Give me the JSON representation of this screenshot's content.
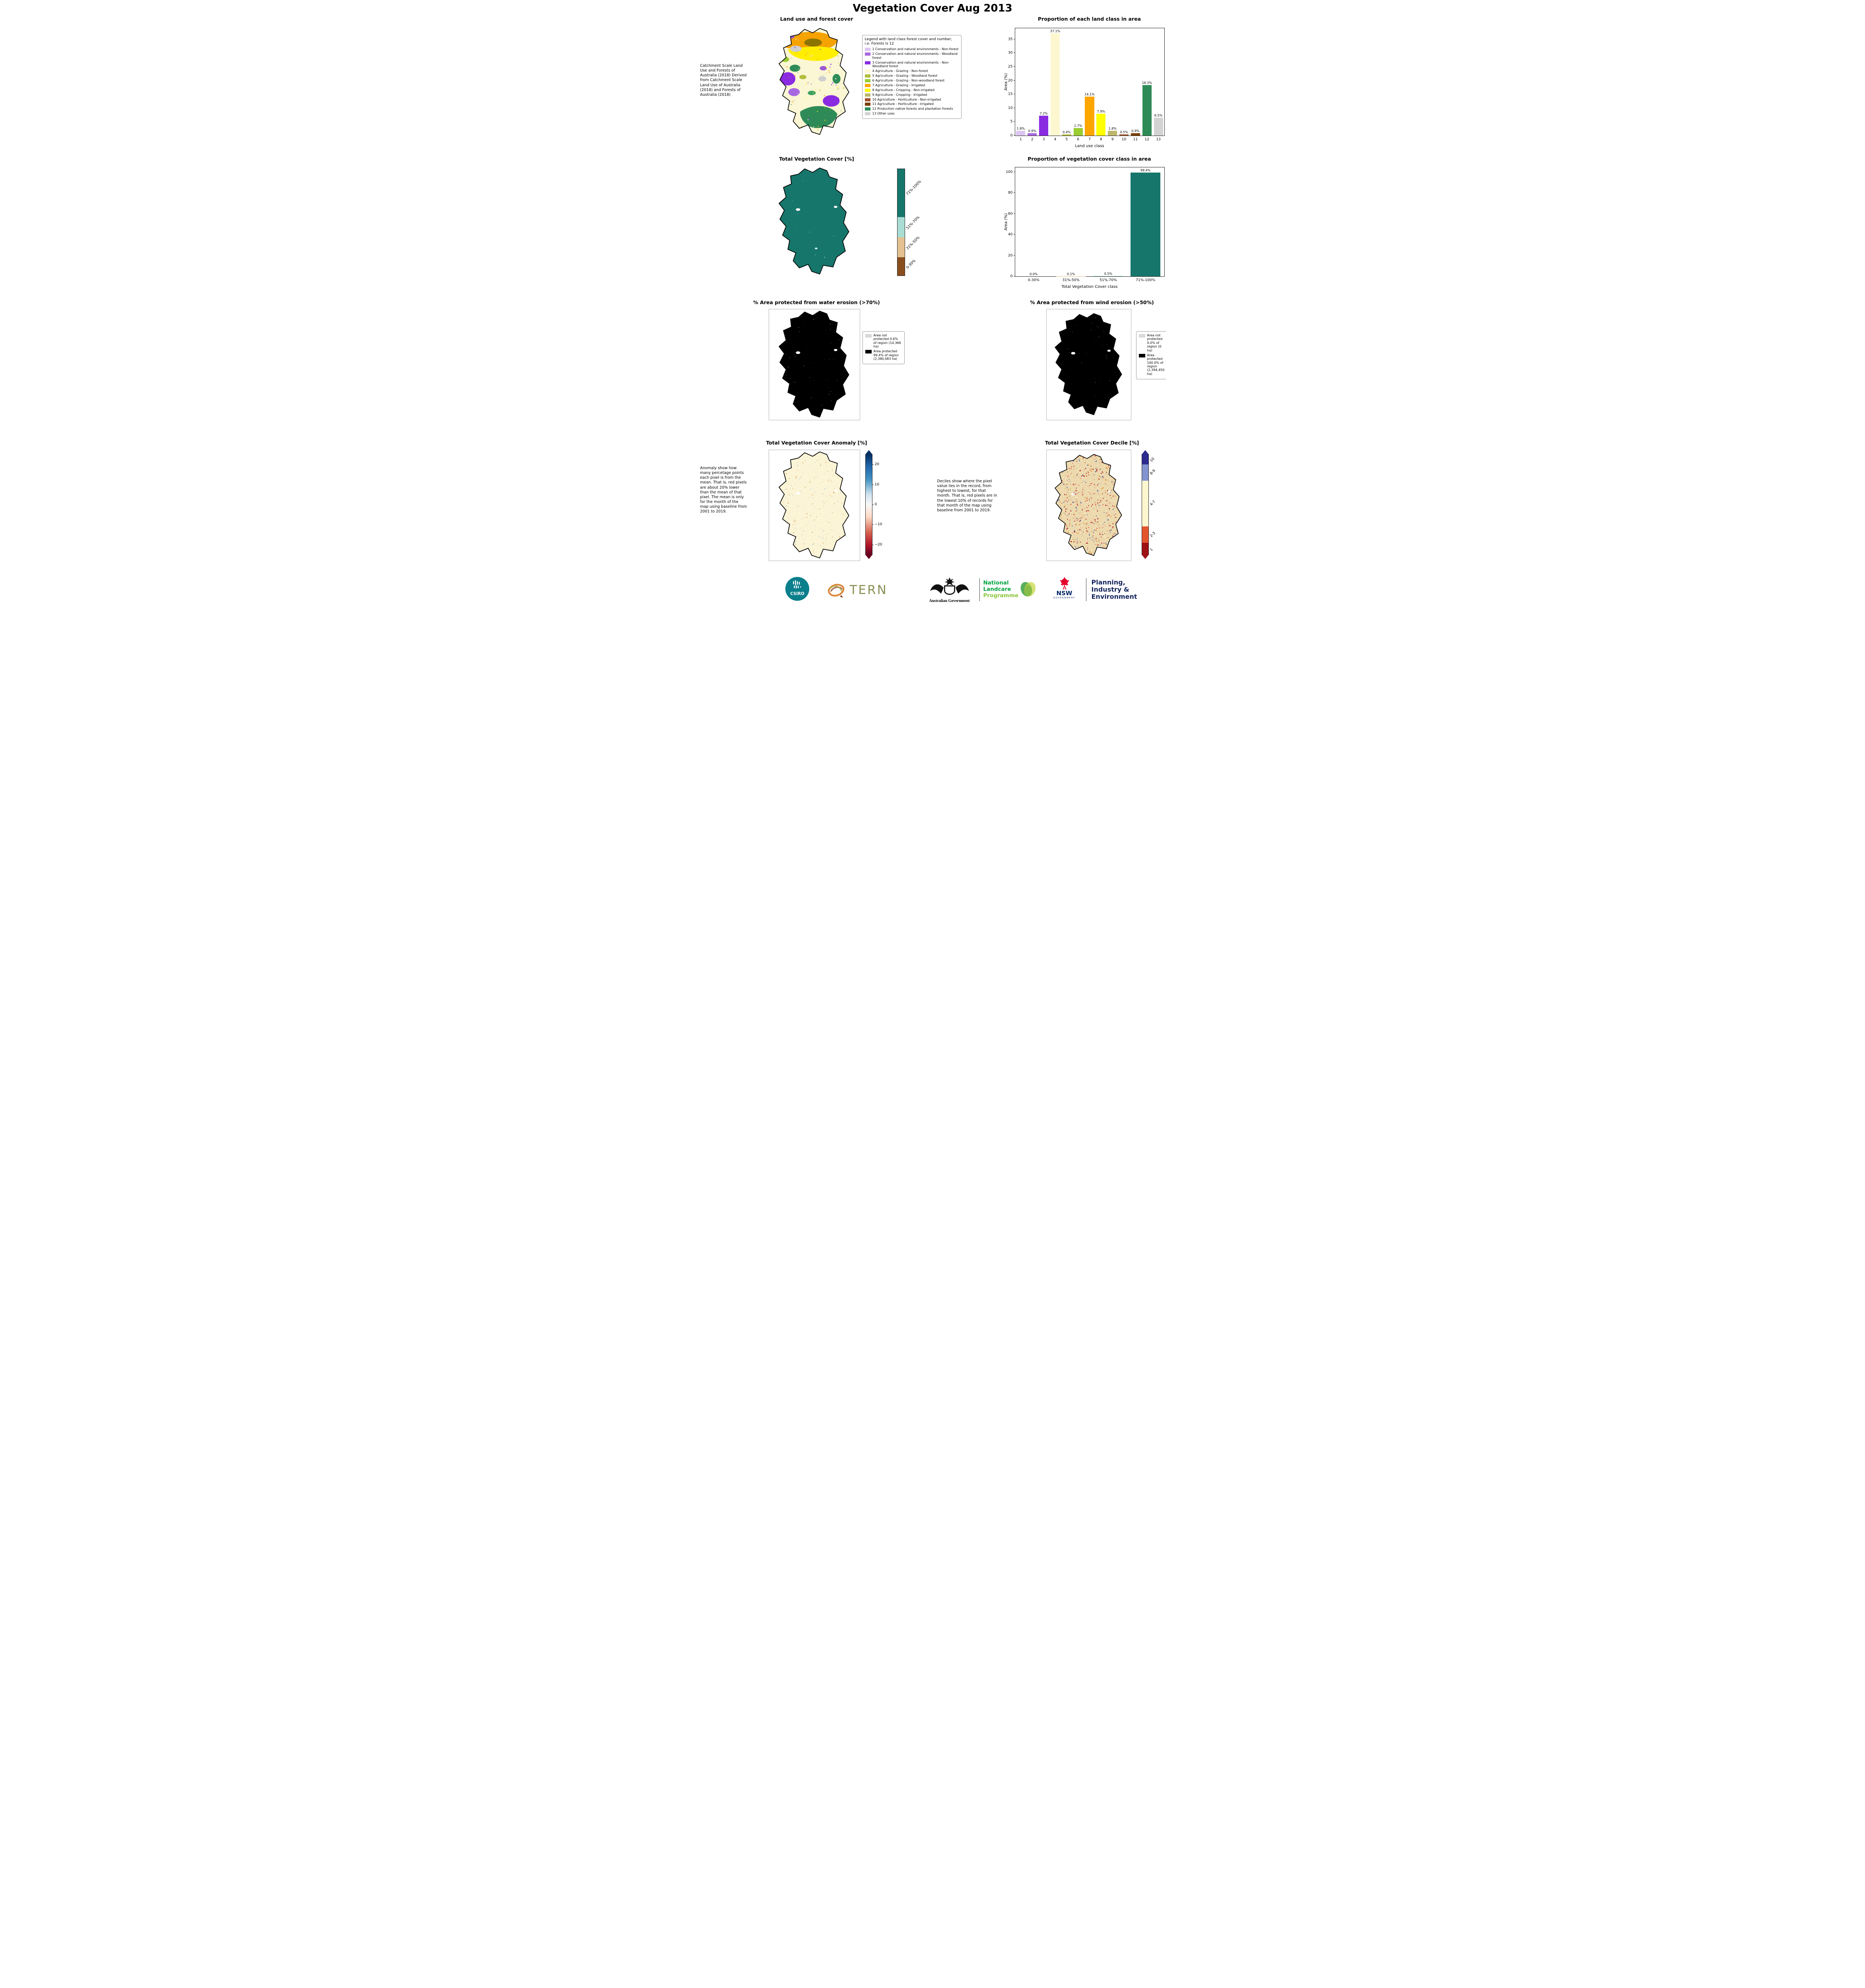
{
  "page_title": "Vegetation Cover Aug 2013",
  "panel1": {
    "title": "Land use and forest cover",
    "side_note": "Catchment Scale Land Use and Forests of Australia (2018) Derived from Catchment Scale Land Use of Australia (2018) and Forests of Australia (2018)",
    "legend_title": "Legend with land class forest cover and number, i.e. Forests is 12",
    "legend_items": [
      {
        "label": "1 Conservation and natural environments - Non-forest",
        "color": "#dcc5f0"
      },
      {
        "label": "2 Conservation and natural environments - Woodland forest",
        "color": "#a868e0"
      },
      {
        "label": "3 Conservation and natural environments - Non-Woodland forest",
        "color": "#8a2be2"
      },
      {
        "label": "4 Agriculture - Grazing - Non-forest",
        "color": "#fcf7cf"
      },
      {
        "label": "5 Agriculture - Grazing - Woodland forest",
        "color": "#b3bd3c"
      },
      {
        "label": "6 Agriculture - Grazing - Non-woodland forest",
        "color": "#9acd32"
      },
      {
        "label": "7 Agriculture - Grazing - Irrigated",
        "color": "#ffa500"
      },
      {
        "label": "8 Agriculture - Cropping - Non-irrigated",
        "color": "#ffff00"
      },
      {
        "label": "9 Agriculture - Cropping - Irrigated",
        "color": "#bdb76b"
      },
      {
        "label": "10 Agriculture - Horticulture - Non-irrigated",
        "color": "#a0522d"
      },
      {
        "label": "11 Agriculture - Horticulture - Irrigated",
        "color": "#7b3f00"
      },
      {
        "label": "12 Production native forests and plantation forests",
        "color": "#2e8b57"
      },
      {
        "label": "13 Other uses",
        "color": "#d3d3d3"
      }
    ]
  },
  "panel3": {
    "title": "Total Vegetation Cover [%]",
    "classes": [
      {
        "label": "71%-100%",
        "color": "#17766b"
      },
      {
        "label": "51%-70%",
        "color": "#a9dcd3"
      },
      {
        "label": "31%-50%",
        "color": "#e3c190"
      },
      {
        "label": "0-30%",
        "color": "#8a4e1e"
      }
    ]
  },
  "panel5": {
    "title": "% Area protected from water erosion (>70%)",
    "legend": [
      {
        "label": "Area not protected 0.6% of region (14,366 ha)",
        "color": "#d9d9d9"
      },
      {
        "label": "Area protected 99.4% of region (2,380,083 ha)",
        "color": "#000000"
      }
    ]
  },
  "panel6": {
    "title": "% Area protected from wind erosion (>50%)",
    "legend": [
      {
        "label": "Area not protected 0.0% of region (0 ha)",
        "color": "#d9d9d9"
      },
      {
        "label": "Area protected 100.0% of region (2,394,450 ha)",
        "color": "#000000"
      }
    ]
  },
  "panel7": {
    "title": "Total Vegetation Cover Anomaly [%]",
    "note": "Anomaly show how many percetage points each pixel is from the mean. That is, red pixels are about 20% lower than the mean of that pixel. The mean is only for the month of the map using baseline from 2001 to 2019.",
    "colorbar_ticks": [
      "20",
      "10",
      "0",
      "−10",
      "−20"
    ]
  },
  "panel8": {
    "title": "Total Vegetation Cover Decile [%]",
    "note": "Deciles show where the pixel value lies in the record, from highest to lowest, for that month. That is, red pixels are in the lowest 10% of records for that month of the map using baseline from 2001 to 2019.",
    "classes": [
      {
        "label": "10",
        "color": "#2a2a8f"
      },
      {
        "label": "8-9",
        "color": "#8293cf"
      },
      {
        "label": "4-7",
        "color": "#fdf6ce"
      },
      {
        "label": "2-3",
        "color": "#e4552e"
      },
      {
        "label": "1",
        "color": "#9e1216"
      }
    ]
  },
  "chart_data": [
    {
      "type": "bar",
      "title": "Proportion of each land class in area",
      "categories": [
        "1",
        "2",
        "3",
        "4",
        "5",
        "6",
        "7",
        "8",
        "9",
        "10",
        "11",
        "12",
        "13"
      ],
      "values": [
        1.8,
        0.9,
        7.2,
        37.1,
        0.4,
        2.7,
        14.1,
        7.9,
        1.8,
        0.5,
        0.9,
        18.3,
        6.5
      ],
      "bar_labels": [
        "1.8%",
        "0.9%",
        "7.2%",
        "37.1%",
        "0.4%",
        "2.7%",
        "14.1%",
        "7.9%",
        "1.8%",
        "0.5%",
        "0.9%",
        "18.3%",
        "6.5%"
      ],
      "colors": [
        "#dcc5f0",
        "#a868e0",
        "#8a2be2",
        "#fcf7cf",
        "#b3bd3c",
        "#9acd32",
        "#ffa500",
        "#ffff00",
        "#bdb76b",
        "#a0522d",
        "#7b3f00",
        "#2e8b57",
        "#d3d3d3"
      ],
      "xlabel": "Land use class",
      "ylabel": "Area (%)",
      "yticks": [
        0,
        5,
        10,
        15,
        20,
        25,
        30,
        35
      ],
      "ylim": [
        0,
        39
      ],
      "grid": false,
      "legend": "none"
    },
    {
      "type": "bar",
      "title": "Proportion of vegetation cover class in area",
      "categories": [
        "0-30%",
        "31%-50%",
        "51%-70%",
        "71%-100%"
      ],
      "values": [
        0.0,
        0.1,
        0.5,
        99.4
      ],
      "bar_labels": [
        "0.0%",
        "0.1%",
        "0.5%",
        "99.4%"
      ],
      "colors": [
        "#8a4e1e",
        "#e3c190",
        "#a9dcd3",
        "#17766b"
      ],
      "xlabel": "Total Vegetation Cover class",
      "ylabel": "Area (%)",
      "yticks": [
        0,
        20,
        40,
        60,
        80,
        100
      ],
      "ylim": [
        0,
        104.5
      ],
      "grid": false,
      "legend": "none"
    }
  ],
  "footer": {
    "csiro": "CSIRO",
    "tern": "TERN",
    "ausgov": "Australian Government",
    "landcare1": "National",
    "landcare2": "Landcare",
    "landcare3": "Programme",
    "nsw": "NSW",
    "nsw_sub": "GOVERNMENT",
    "dpie1": "Planning,",
    "dpie2": "Industry &",
    "dpie3": "Environment"
  }
}
